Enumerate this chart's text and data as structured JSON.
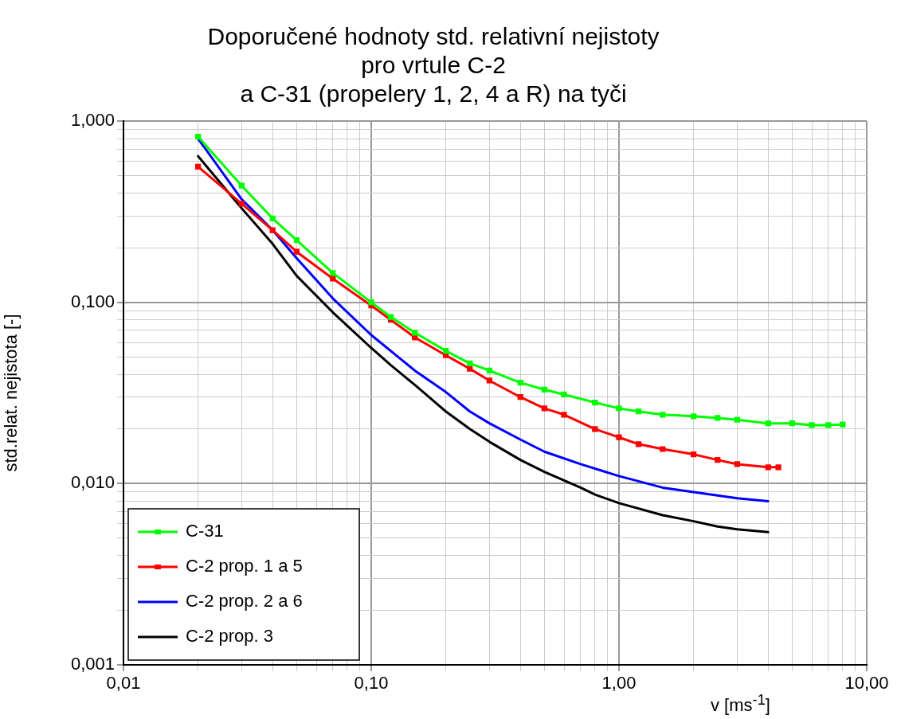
{
  "chart_data": {
    "type": "line",
    "title": "Doporučené hodnoty std. relativní nejistoty\npro vrtule C-2\na C-31 (propelery 1, 2, 4 a R) na tyči",
    "xlabel": "v [ms$^{-1}$]",
    "ylabel": "std.relat. nejistota [-]",
    "log": "xy",
    "grid": true,
    "legend": "bottom left",
    "line_style": "solid",
    "xlim": [
      0.01,
      10
    ],
    "ylim": [
      0.001,
      1
    ],
    "xticks": [
      {
        "value": 0.01,
        "label": "0,01"
      },
      {
        "value": 0.02,
        "label": null
      },
      {
        "value": 0.03,
        "label": null
      },
      {
        "value": 0.04,
        "label": null
      },
      {
        "value": 0.05,
        "label": null
      },
      {
        "value": 0.06,
        "label": null
      },
      {
        "value": 0.07,
        "label": null
      },
      {
        "value": 0.08,
        "label": null
      },
      {
        "value": 0.09,
        "label": null
      },
      {
        "value": 0.1,
        "label": "0,10"
      },
      {
        "value": 0.2,
        "label": null
      },
      {
        "value": 0.3,
        "label": null
      },
      {
        "value": 0.4,
        "label": null
      },
      {
        "value": 0.5,
        "label": null
      },
      {
        "value": 0.6,
        "label": null
      },
      {
        "value": 0.7,
        "label": null
      },
      {
        "value": 0.8,
        "label": null
      },
      {
        "value": 0.9,
        "label": null
      },
      {
        "value": 1,
        "label": "1,00"
      },
      {
        "value": 2,
        "label": null
      },
      {
        "value": 3,
        "label": null
      },
      {
        "value": 4,
        "label": null
      },
      {
        "value": 5,
        "label": null
      },
      {
        "value": 6,
        "label": null
      },
      {
        "value": 7,
        "label": null
      },
      {
        "value": 8,
        "label": null
      },
      {
        "value": 9,
        "label": null
      },
      {
        "value": 10,
        "label": "10,00"
      }
    ],
    "yticks": [
      {
        "value": 0.001,
        "label": "0,001"
      },
      {
        "value": 0.002,
        "label": null
      },
      {
        "value": 0.003,
        "label": null
      },
      {
        "value": 0.004,
        "label": null
      },
      {
        "value": 0.005,
        "label": null
      },
      {
        "value": 0.006,
        "label": null
      },
      {
        "value": 0.007,
        "label": null
      },
      {
        "value": 0.008,
        "label": null
      },
      {
        "value": 0.009,
        "label": null
      },
      {
        "value": 0.01,
        "label": "0,010"
      },
      {
        "value": 0.02,
        "label": null
      },
      {
        "value": 0.03,
        "label": null
      },
      {
        "value": 0.04,
        "label": null
      },
      {
        "value": 0.05,
        "label": null
      },
      {
        "value": 0.06,
        "label": null
      },
      {
        "value": 0.07,
        "label": null
      },
      {
        "value": 0.08,
        "label": null
      },
      {
        "value": 0.09,
        "label": null
      },
      {
        "value": 0.1,
        "label": "0,100"
      },
      {
        "value": 0.2,
        "label": null
      },
      {
        "value": 0.3,
        "label": null
      },
      {
        "value": 0.4,
        "label": null
      },
      {
        "value": 0.5,
        "label": null
      },
      {
        "value": 0.6,
        "label": null
      },
      {
        "value": 0.7,
        "label": null
      },
      {
        "value": 0.8,
        "label": null
      },
      {
        "value": 0.9,
        "label": null
      },
      {
        "value": 1,
        "label": "1,000"
      }
    ],
    "series": [
      {
        "name": "C-31",
        "color": "#00ff00",
        "marker": "square",
        "x": [
          0.02,
          0.03,
          0.04,
          0.05,
          0.07,
          0.1,
          0.12,
          0.15,
          0.2,
          0.25,
          0.3,
          0.4,
          0.5,
          0.6,
          0.8,
          1.0,
          1.2,
          1.5,
          2,
          2.5,
          3,
          4,
          5,
          6,
          7,
          8
        ],
        "values": [
          0.82,
          0.44,
          0.29,
          0.22,
          0.145,
          0.1,
          0.083,
          0.068,
          0.054,
          0.046,
          0.042,
          0.036,
          0.033,
          0.031,
          0.028,
          0.026,
          0.025,
          0.024,
          0.0235,
          0.023,
          0.0225,
          0.0215,
          0.0215,
          0.021,
          0.021,
          0.0212
        ]
      },
      {
        "name": "C-2 prop. 1 a 5",
        "color": "#ff0000",
        "marker": "square",
        "x": [
          0.02,
          0.03,
          0.04,
          0.05,
          0.07,
          0.1,
          0.12,
          0.15,
          0.2,
          0.25,
          0.3,
          0.4,
          0.5,
          0.6,
          0.8,
          1.0,
          1.2,
          1.5,
          2,
          2.5,
          3,
          4,
          4.4
        ],
        "values": [
          0.56,
          0.35,
          0.25,
          0.19,
          0.135,
          0.096,
          0.08,
          0.064,
          0.051,
          0.043,
          0.037,
          0.03,
          0.026,
          0.024,
          0.02,
          0.018,
          0.0165,
          0.0155,
          0.0145,
          0.0135,
          0.0128,
          0.0123,
          0.0123
        ]
      },
      {
        "name": "C-2 prop. 2 a 6",
        "color": "#0000ff",
        "marker": "none",
        "x": [
          0.02,
          0.03,
          0.04,
          0.05,
          0.07,
          0.1,
          0.15,
          0.2,
          0.25,
          0.3,
          0.4,
          0.5,
          0.7,
          1,
          1.5,
          3,
          4
        ],
        "values": [
          0.8,
          0.37,
          0.25,
          0.175,
          0.105,
          0.066,
          0.042,
          0.032,
          0.025,
          0.0215,
          0.0175,
          0.015,
          0.0128,
          0.011,
          0.0095,
          0.0083,
          0.008
        ]
      },
      {
        "name": "C-2 prop. 3",
        "color": "#000000",
        "marker": "none",
        "x": [
          0.02,
          0.03,
          0.04,
          0.05,
          0.07,
          0.1,
          0.12,
          0.15,
          0.2,
          0.25,
          0.3,
          0.4,
          0.5,
          0.7,
          0.8,
          1,
          1.5,
          2,
          2.5,
          3,
          4
        ],
        "values": [
          0.64,
          0.33,
          0.21,
          0.14,
          0.088,
          0.056,
          0.045,
          0.035,
          0.025,
          0.02,
          0.017,
          0.0135,
          0.0116,
          0.0095,
          0.0087,
          0.0078,
          0.0067,
          0.0062,
          0.0058,
          0.0056,
          0.0054
        ]
      }
    ]
  }
}
